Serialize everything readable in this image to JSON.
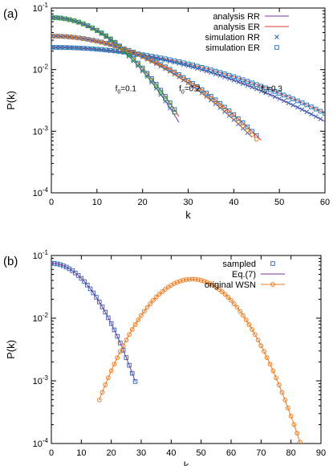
{
  "chart_data": [
    {
      "panel_label": "(a)",
      "type": "line",
      "xlabel": "k",
      "ylabel": "P(k)",
      "xlim": [
        0,
        60
      ],
      "ylim": [
        0.0001,
        0.1
      ],
      "yscale": "log",
      "xticks": [
        0,
        10,
        20,
        30,
        40,
        50,
        60
      ],
      "yticks": [
        {
          "value": 0.0001,
          "base": "10",
          "exp": "-4"
        },
        {
          "value": 0.001,
          "base": "10",
          "exp": "-3"
        },
        {
          "value": 0.01,
          "base": "10",
          "exp": "-2"
        },
        {
          "value": 0.1,
          "base": "10",
          "exp": "-1"
        }
      ],
      "legend_position": "top-right",
      "annotations": [
        {
          "label": "f",
          "sub": "0",
          "value_text": "=0.1",
          "x": 14,
          "y": 0.0045
        },
        {
          "label": "f",
          "sub": "0",
          "value_text": "=0.2",
          "x": 28,
          "y": 0.0045
        },
        {
          "label": "f",
          "sub": "0",
          "value_text": "=0.3",
          "x": 46,
          "y": 0.0045
        }
      ],
      "series": [
        {
          "name": "analysis RR",
          "kind": "line",
          "color": "#7b2f9e",
          "curves": [
            {
              "mu": 0,
              "sigma": 10.0,
              "amp": 0.07,
              "x": [
                0,
                28
              ]
            },
            {
              "mu": 0,
              "sigma": 16.0,
              "amp": 0.035,
              "x": [
                0,
                44
              ]
            },
            {
              "mu": 0,
              "sigma": 25.5,
              "amp": 0.023,
              "x": [
                0,
                60
              ]
            }
          ]
        },
        {
          "name": "analysis ER",
          "kind": "line",
          "color": "#e8382c",
          "curves": [
            {
              "mu": 0,
              "sigma": 10.3,
              "amp": 0.07,
              "x": [
                0,
                28
              ]
            },
            {
              "mu": 0,
              "sigma": 16.5,
              "amp": 0.035,
              "x": [
                0,
                46
              ]
            },
            {
              "mu": 0,
              "sigma": 27.0,
              "amp": 0.023,
              "x": [
                0,
                60
              ]
            }
          ]
        },
        {
          "name": "simulation RR",
          "kind": "marker-x",
          "color": "#3060b0",
          "curves": [
            {
              "mu": 0,
              "sigma": 10.0,
              "amp": 0.07,
              "x": [
                0,
                26
              ]
            },
            {
              "mu": 0,
              "sigma": 16.0,
              "amp": 0.035,
              "x": [
                0,
                43
              ]
            },
            {
              "mu": 0,
              "sigma": 25.5,
              "amp": 0.023,
              "x": [
                0,
                59
              ]
            }
          ]
        },
        {
          "name": "simulation ER",
          "kind": "marker-square",
          "color": "#2878b8",
          "curves": [
            {
              "mu": 0,
              "sigma": 10.3,
              "amp": 0.07,
              "x": [
                0,
                27
              ]
            },
            {
              "mu": 0,
              "sigma": 16.5,
              "amp": 0.035,
              "x": [
                0,
                45
              ]
            },
            {
              "mu": 0,
              "sigma": 27.0,
              "amp": 0.023,
              "x": [
                0,
                60
              ]
            }
          ]
        },
        {
          "name": "",
          "kind": "marker-square",
          "color": "#3a9a3a",
          "curves": [
            {
              "mu": 0,
              "sigma": 10.15,
              "amp": 0.07,
              "x": [
                0,
                27
              ]
            }
          ]
        },
        {
          "name": "",
          "kind": "marker-circle",
          "color": "#f07a1c",
          "curves": [
            {
              "mu": 0,
              "sigma": 16.2,
              "amp": 0.035,
              "x": [
                0,
                45
              ]
            }
          ]
        }
      ]
    },
    {
      "panel_label": "(b)",
      "type": "line",
      "xlabel": "k",
      "ylabel": "P(k)",
      "xlim": [
        0,
        90
      ],
      "ylim": [
        0.0001,
        0.1
      ],
      "yscale": "log",
      "xticks": [
        0,
        10,
        20,
        30,
        40,
        50,
        60,
        70,
        80,
        90
      ],
      "yticks": [
        {
          "value": 0.0001,
          "base": "10",
          "exp": "-4"
        },
        {
          "value": 0.001,
          "base": "10",
          "exp": "-3"
        },
        {
          "value": 0.01,
          "base": "10",
          "exp": "-2"
        },
        {
          "value": 0.1,
          "base": "10",
          "exp": "-1"
        }
      ],
      "legend_position": "top-right",
      "series": [
        {
          "name": "sampled",
          "kind": "marker-square",
          "color": "#3a6fb8",
          "curves": [
            {
              "mu": 0,
              "sigma": 9.5,
              "amp": 0.075,
              "x": [
                0,
                28
              ]
            }
          ]
        },
        {
          "name": "Eq.(7)",
          "kind": "line",
          "color": "#7b2f9e",
          "curves": [
            {
              "mu": 0,
              "sigma": 9.5,
              "amp": 0.075,
              "x": [
                0,
                28
              ]
            }
          ]
        },
        {
          "name": "original WSN",
          "kind": "line-circle",
          "color": "#f07a1c",
          "curves": [
            {
              "mu": 47,
              "sigma": 10.4,
              "amp": 0.042,
              "x": [
                16,
                86
              ]
            }
          ]
        }
      ]
    }
  ]
}
